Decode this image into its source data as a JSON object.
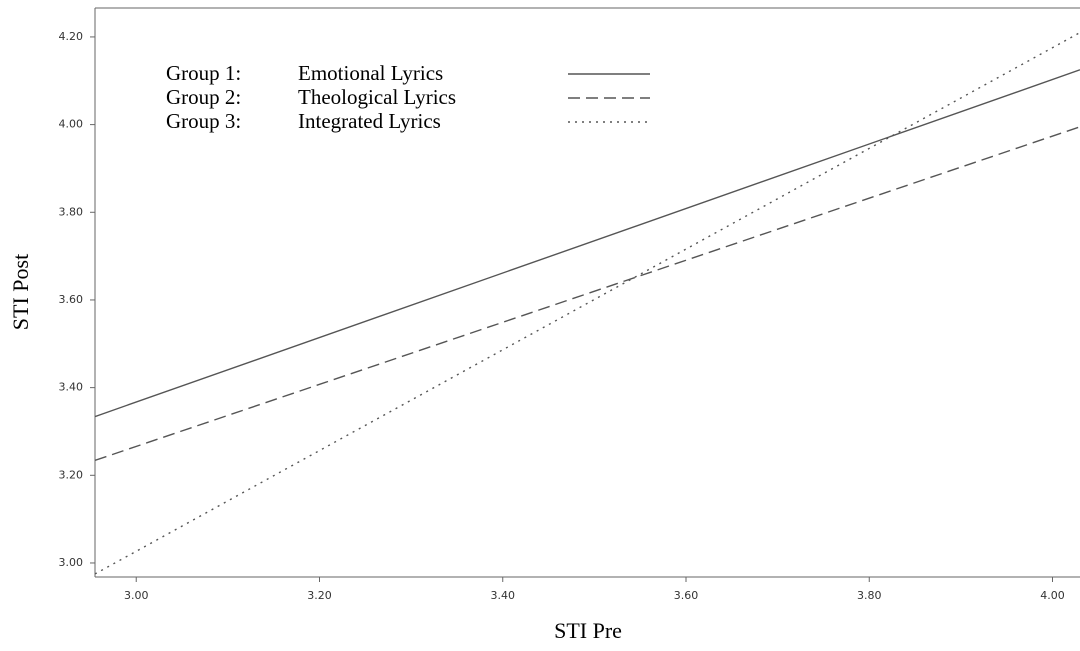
{
  "chart_data": {
    "type": "line",
    "x_label": "STI Pre",
    "y_label": "STI Post",
    "x": [
      2.955,
      4.03
    ],
    "series": [
      {
        "group": "Group 1:",
        "name": "Emotional Lyrics",
        "color": "#555555",
        "dash": "none",
        "values": [
          3.334,
          4.125
        ]
      },
      {
        "group": "Group 2:",
        "name": "Theological Lyrics",
        "color": "#555555",
        "dash": "12 6",
        "values": [
          3.234,
          3.995
        ]
      },
      {
        "group": "Group 3:",
        "name": "Integrated Lyrics",
        "color": "#555555",
        "dash": "2 5",
        "values": [
          2.975,
          4.21
        ]
      }
    ],
    "xlim": [
      2.955,
      4.03
    ],
    "xticks": [
      {
        "value": 3,
        "label": "3.00"
      },
      {
        "value": 3.2,
        "label": "3.20"
      },
      {
        "value": 3.4,
        "label": "3.40"
      },
      {
        "value": 3.6,
        "label": "3.60"
      },
      {
        "value": 3.8,
        "label": "3.80"
      },
      {
        "value": 4,
        "label": "4.00"
      }
    ],
    "ylim": [
      2.968,
      4.266
    ],
    "yticks": [
      {
        "value": 3,
        "label": "3.00"
      },
      {
        "value": 3.2,
        "label": "3.20"
      },
      {
        "value": 3.4,
        "label": "3.40"
      },
      {
        "value": 3.6,
        "label": "3.60"
      },
      {
        "value": 3.8,
        "label": "3.80"
      },
      {
        "value": 4,
        "label": "4.00"
      },
      {
        "value": 4.2,
        "label": "4.20"
      }
    ],
    "grid": false
  }
}
